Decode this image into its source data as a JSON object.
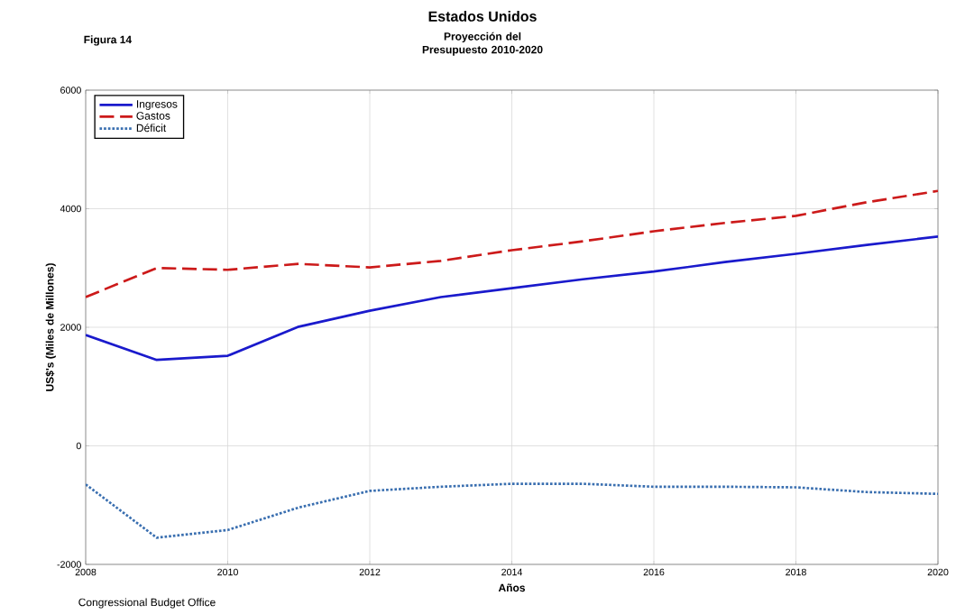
{
  "chart_data": {
    "type": "line",
    "title": "Estados Unidos",
    "subtitle": "Proyección del Presupuesto 2010-2020",
    "xlabel": "Años",
    "ylabel": "US$'s (Miles de Millones)",
    "annotations": [
      "Figura 14",
      "Congressional Budget Office"
    ],
    "x": [
      2008,
      2009,
      2010,
      2011,
      2012,
      2013,
      2014,
      2015,
      2016,
      2017,
      2018,
      2019,
      2020
    ],
    "series": [
      {
        "name": "Ingresos",
        "color": "#1a1acc",
        "line_style": "solid",
        "values": [
          1870,
          1450,
          1520,
          2010,
          2280,
          2510,
          2660,
          2810,
          2940,
          3100,
          3240,
          3390,
          3530
        ]
      },
      {
        "name": "Gastos",
        "color": "#cc1a1a",
        "line_style": "dashed",
        "values": [
          2510,
          3000,
          2970,
          3070,
          3010,
          3120,
          3300,
          3450,
          3620,
          3760,
          3880,
          4110,
          4300
        ]
      },
      {
        "name": "Déficit",
        "color": "#3a6fb0",
        "line_style": "dotted",
        "values": [
          -650,
          -1550,
          -1420,
          -1040,
          -760,
          -690,
          -640,
          -640,
          -690,
          -690,
          -700,
          -780,
          -810
        ]
      }
    ],
    "xlim": [
      2008,
      2020
    ],
    "ylim": [
      -2000,
      6000
    ],
    "xticks": [
      2008,
      2010,
      2012,
      2014,
      2016,
      2018,
      2020
    ],
    "yticks": [
      -2000,
      0,
      2000,
      4000,
      6000
    ],
    "grid": true,
    "legend": "top left"
  }
}
